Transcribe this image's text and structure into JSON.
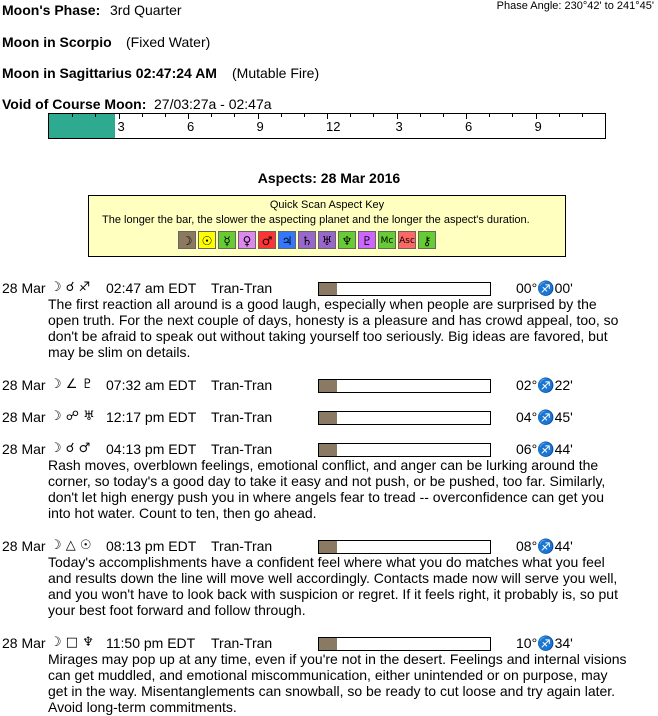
{
  "header": {
    "phase_label": "Moon's Phase:",
    "phase": "3rd Quarter",
    "phase_angle": "Phase Angle:  230°42' to 241°45'",
    "moon_sign_1": "Moon in Scorpio",
    "moon_sign_1_note": "(Fixed Water)",
    "moon_sign_2": "Moon in Sagittarius 02:47:24 AM",
    "moon_sign_2_note": "(Mutable Fire)",
    "void_label": "Void of Course Moon:",
    "void_time": "27/03:27a -  02:47a"
  },
  "timeline": {
    "labels": [
      "3",
      "6",
      "9",
      "12",
      "3",
      "6",
      "9"
    ]
  },
  "aspects_title": "Aspects: 28 Mar 2016",
  "key": {
    "title": "Quick Scan Aspect Key",
    "text": "The longer the bar, the slower the aspecting planet and the longer the aspect's duration.",
    "symbols": [
      "☽",
      "☉",
      "☿",
      "♀",
      "♂",
      "♃",
      "♄",
      "♅",
      "♆",
      "♇",
      "Mc",
      "Asc",
      "⚷"
    ]
  },
  "entries": [
    {
      "date": "28 Mar",
      "aspect": "☽ ☌ ♐",
      "time": "02:47 am EDT",
      "kind": "Tran-Tran",
      "position": "00°♐00'",
      "description": [
        "The first reaction all around is a good laugh, especially when people are surprised by the",
        "open truth. For the next couple of days, honesty is a pleasure and has crowd appeal, too, so",
        "don't be afraid to speak out without taking yourself too seriously. Big ideas are favored, but",
        "may be slim on details."
      ]
    },
    {
      "date": "28 Mar",
      "aspect": "☽ ∠ ♇",
      "time": "07:32 am EDT",
      "kind": "Tran-Tran",
      "position": "02°♐22'",
      "description": []
    },
    {
      "date": "28 Mar",
      "aspect": "☽ ☍ ♅",
      "time": "12:17 pm EDT",
      "kind": "Tran-Tran",
      "position": "04°♐45'",
      "description": []
    },
    {
      "date": "28 Mar",
      "aspect": "☽ ☌ ♂",
      "time": "04:13 pm EDT",
      "kind": "Tran-Tran",
      "position": "06°♐44'",
      "description": [
        "Rash moves, overblown feelings, emotional conflict, and anger can be lurking around the",
        "corner, so today's a good day to take it easy and not push, or be pushed, too far. Similarly,",
        "don't let high energy push you in where angels fear to tread -- overconfidence can get you",
        "into hot water. Count to ten, then go ahead."
      ]
    },
    {
      "date": "28 Mar",
      "aspect": "☽ △ ☉",
      "time": "08:13 pm EDT",
      "kind": "Tran-Tran",
      "position": "08°♐44'",
      "description": [
        "Today's accomplishments have a confident feel where what you do matches what you feel",
        "and results down the line will move well accordingly. Contacts made now will serve you well,",
        "and you won't have to look back with suspicion or regret. If it feels right, it probably is, so put",
        "your best foot forward and follow through."
      ]
    },
    {
      "date": "28 Mar",
      "aspect": "☽ □ ♆",
      "time": "11:50 pm EDT",
      "kind": "Tran-Tran",
      "position": "10°♐34'",
      "description": [
        "Mirages may pop up at any time, even if you're not in the desert. Feelings and internal visions",
        "can get muddled, and emotional miscommunication, either unintended or on purpose, may",
        "get in the way. Misentanglements can snowball, so be ready to cut loose and try again later.",
        "Avoid long-term commitments."
      ]
    }
  ]
}
